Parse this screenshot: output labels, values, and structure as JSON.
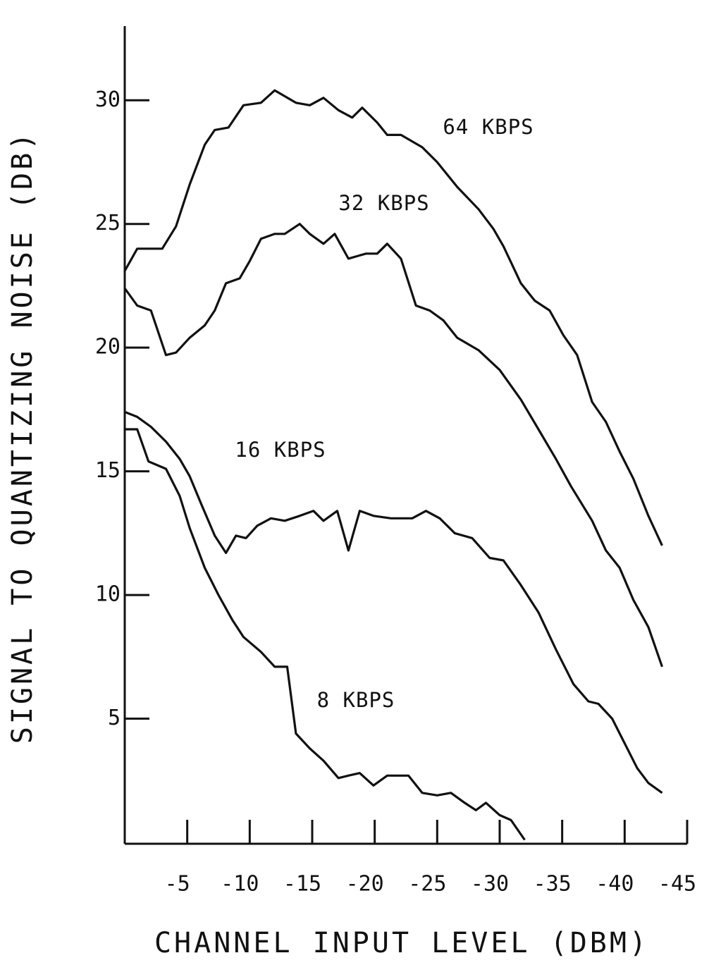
{
  "chart_data": {
    "type": "line",
    "xlabel": "CHANNEL INPUT LEVEL (DBM)",
    "ylabel": "SIGNAL TO QUANTIZING NOISE (DB)",
    "xlim": [
      0,
      -45
    ],
    "xticks": [
      -5,
      -10,
      -15,
      -20,
      -25,
      -30,
      -35,
      -40,
      -45
    ],
    "ylim": [
      0,
      33
    ],
    "yticks": [
      5,
      10,
      15,
      20,
      25,
      30
    ],
    "grid": false,
    "series": [
      {
        "name": "64 KBPS",
        "color": "#111111",
        "x": [
          0,
          -1,
          -3,
          -4.1,
          -5.2,
          -6.4,
          -7.2,
          -8.3,
          -9.5,
          -10.9,
          -12,
          -13.7,
          -14.8,
          -15.9,
          -17.1,
          -18.2,
          -19,
          -20.2,
          -21,
          -22.1,
          -23.8,
          -25,
          -26.6,
          -28.3,
          -29.5,
          -30.3,
          -31.7,
          -32.8,
          -34,
          -35.1,
          -36.2,
          -37.4,
          -38.5,
          -39.6,
          -40.7,
          -41.9,
          -43
        ],
        "values": [
          23.1,
          24.0,
          24.0,
          24.9,
          26.6,
          28.2,
          28.8,
          28.9,
          29.8,
          29.9,
          30.4,
          29.9,
          29.8,
          30.1,
          29.6,
          29.3,
          29.7,
          29.1,
          28.6,
          28.6,
          28.1,
          27.5,
          26.5,
          25.6,
          24.8,
          24.1,
          22.6,
          21.9,
          21.5,
          20.5,
          19.7,
          17.8,
          17.0,
          15.8,
          14.7,
          13.2,
          12.0
        ]
      },
      {
        "name": "32 KBPS",
        "color": "#111111",
        "x": [
          0,
          -1,
          -2.1,
          -3.3,
          -4.1,
          -5.2,
          -6.4,
          -7.2,
          -8.1,
          -9.2,
          -10,
          -10.9,
          -12,
          -12.8,
          -14,
          -14.8,
          -15.9,
          -16.8,
          -17.9,
          -19.3,
          -20.2,
          -21,
          -22.1,
          -23.3,
          -24.4,
          -25.5,
          -26.6,
          -28.3,
          -30,
          -31.7,
          -33.1,
          -34.5,
          -35.7,
          -37.4,
          -38.5,
          -39.6,
          -40.7,
          -41.9,
          -43
        ],
        "values": [
          22.4,
          21.7,
          21.5,
          19.7,
          19.8,
          20.4,
          20.9,
          21.5,
          22.6,
          22.8,
          23.5,
          24.4,
          24.6,
          24.6,
          25.0,
          24.6,
          24.2,
          24.6,
          23.6,
          23.8,
          23.8,
          24.2,
          23.6,
          21.7,
          21.5,
          21.1,
          20.4,
          19.9,
          19.1,
          17.9,
          16.7,
          15.5,
          14.4,
          13.0,
          11.8,
          11.1,
          9.8,
          8.7,
          7.1
        ]
      },
      {
        "name": "16 KBPS",
        "color": "#111111",
        "x": [
          0,
          -1,
          -2.1,
          -3.3,
          -4.4,
          -5.2,
          -6.1,
          -7.2,
          -8.1,
          -8.9,
          -9.7,
          -10.6,
          -11.7,
          -12.8,
          -14,
          -15.1,
          -15.9,
          -17,
          -17.9,
          -18.8,
          -19.9,
          -21.3,
          -23,
          -24.1,
          -25.2,
          -26.4,
          -27.8,
          -29.2,
          -30.3,
          -31.7,
          -33.1,
          -34.5,
          -35.9,
          -37.1,
          -37.9,
          -39,
          -39.9,
          -41,
          -41.9,
          -43
        ],
        "values": [
          17.4,
          17.2,
          16.8,
          16.2,
          15.5,
          14.8,
          13.7,
          12.4,
          11.7,
          12.4,
          12.3,
          12.8,
          13.1,
          13.0,
          13.2,
          13.4,
          13.0,
          13.4,
          11.8,
          13.4,
          13.2,
          13.1,
          13.1,
          13.4,
          13.1,
          12.5,
          12.3,
          11.5,
          11.4,
          10.4,
          9.3,
          7.8,
          6.4,
          5.7,
          5.6,
          5.0,
          4.1,
          3.0,
          2.4,
          2.0
        ]
      },
      {
        "name": "8 KBPS",
        "color": "#111111",
        "x": [
          0,
          -1,
          -1.9,
          -3.3,
          -4.4,
          -5.2,
          -6.4,
          -7.5,
          -8.6,
          -9.5,
          -10.9,
          -12,
          -13,
          -13.7,
          -14.8,
          -15.9,
          -17.1,
          -17.9,
          -18.8,
          -19.9,
          -21,
          -22.7,
          -23.8,
          -25,
          -26.1,
          -27.2,
          -28.1,
          -28.9,
          -30,
          -30.9,
          -32
        ],
        "values": [
          16.7,
          16.7,
          15.4,
          15.1,
          14.0,
          12.7,
          11.1,
          10.0,
          9.0,
          8.3,
          7.7,
          7.1,
          7.1,
          4.4,
          3.8,
          3.3,
          2.6,
          2.7,
          2.8,
          2.3,
          2.7,
          2.7,
          2.0,
          1.9,
          2.0,
          1.6,
          1.3,
          1.6,
          1.1,
          0.9,
          0.1
        ]
      }
    ]
  }
}
